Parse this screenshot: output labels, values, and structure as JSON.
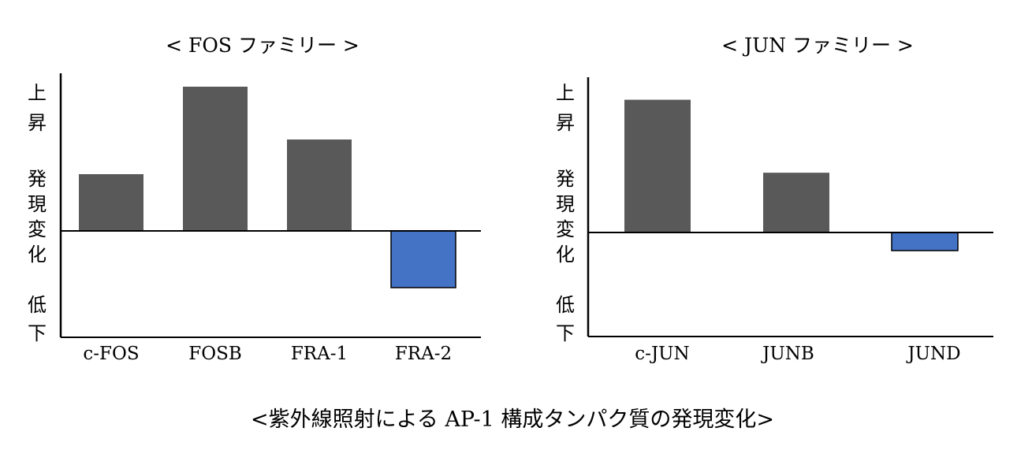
{
  "caption": "<紫外線照射による AP-1 構成タンパク質の発現変化>",
  "colors": {
    "up": "#595959",
    "down": "#4472c4",
    "axis": "#000000"
  },
  "chart_data": [
    {
      "type": "bar",
      "title": "< FOS ファミリー >",
      "ylabel_top": [
        "上",
        "昇"
      ],
      "ylabel_mid": [
        "発",
        "現",
        "変",
        "化"
      ],
      "ylabel_bottom": [
        "低",
        "下"
      ],
      "categories": [
        "c-FOS",
        "FOSB",
        "FRA-1",
        "FRA-2"
      ],
      "values": [
        72,
        183,
        116,
        -72
      ],
      "ylim": [
        -135,
        200
      ],
      "legend": "none"
    },
    {
      "type": "bar",
      "title": "< JUN ファミリー >",
      "ylabel_top": [
        "上",
        "昇"
      ],
      "ylabel_mid": [
        "発",
        "現",
        "変",
        "化"
      ],
      "ylabel_bottom": [
        "低",
        "下"
      ],
      "categories": [
        "c-JUN",
        "JUNB",
        "JUND"
      ],
      "values": [
        171,
        77,
        -23
      ],
      "ylim": [
        -132,
        200
      ],
      "legend": "none"
    }
  ]
}
